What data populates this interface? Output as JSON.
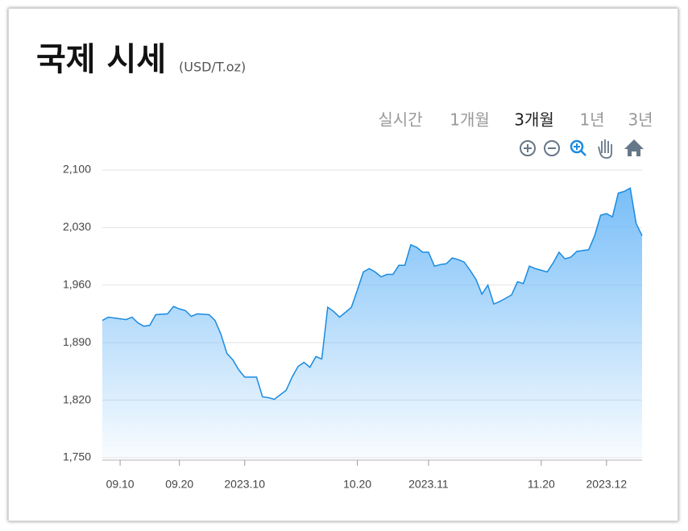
{
  "header": {
    "title": "국제 시세",
    "unit": "(USD/T.oz)"
  },
  "tabs": [
    "실시간",
    "1개월",
    "3개월",
    "1년",
    "3년"
  ],
  "active_tab_index": 2,
  "chart_data": {
    "type": "area",
    "color": "#1a8be0",
    "grid": true,
    "x": [
      "2023-09-07",
      "2023-09-08",
      "2023-09-11",
      "2023-09-12",
      "2023-09-13",
      "2023-09-14",
      "2023-09-15",
      "2023-09-16",
      "2023-09-18",
      "2023-09-19",
      "2023-09-20",
      "2023-09-21",
      "2023-09-22",
      "2023-09-23",
      "2023-09-25",
      "2023-09-26",
      "2023-09-27",
      "2023-09-28",
      "2023-09-29",
      "2023-09-30",
      "2023-10-01",
      "2023-10-03",
      "2023-10-04",
      "2023-10-05",
      "2023-10-06",
      "2023-10-08",
      "2023-10-09",
      "2023-10-10",
      "2023-10-11",
      "2023-10-12",
      "2023-10-13",
      "2023-10-14",
      "2023-10-15",
      "2023-10-16",
      "2023-10-17",
      "2023-10-18",
      "2023-10-19",
      "2023-10-20",
      "2023-10-21",
      "2023-10-22",
      "2023-10-23",
      "2023-10-24",
      "2023-10-25",
      "2023-10-26",
      "2023-10-27",
      "2023-10-28",
      "2023-10-29",
      "2023-10-30",
      "2023-10-31",
      "2023-11-01",
      "2023-11-02",
      "2023-11-03",
      "2023-11-04",
      "2023-11-05",
      "2023-11-06",
      "2023-11-07",
      "2023-11-08",
      "2023-11-09",
      "2023-11-10",
      "2023-11-11",
      "2023-11-12",
      "2023-11-13",
      "2023-11-14",
      "2023-11-15",
      "2023-11-16",
      "2023-11-17",
      "2023-11-18",
      "2023-11-19",
      "2023-11-20",
      "2023-11-21",
      "2023-11-22",
      "2023-11-23",
      "2023-11-24",
      "2023-11-25",
      "2023-11-26",
      "2023-11-28",
      "2023-11-29",
      "2023-11-30",
      "2023-12-01",
      "2023-12-02",
      "2023-12-03",
      "2023-12-04",
      "2023-12-05",
      "2023-12-06",
      "2023-12-07"
    ],
    "values": [
      1917,
      1921,
      1918,
      1921,
      1914,
      1910,
      1911,
      1924,
      1925,
      1934,
      1931,
      1929,
      1922,
      1925,
      1924,
      1917,
      1900,
      1877,
      1869,
      1857,
      1848,
      1848,
      1824,
      1823,
      1821,
      1832,
      1848,
      1861,
      1866,
      1860,
      1873,
      1870,
      1933,
      1928,
      1921,
      1927,
      1933,
      1954,
      1976,
      1980,
      1976,
      1970,
      1973,
      1973,
      1984,
      1984,
      2009,
      2006,
      2000,
      2000,
      1983,
      1985,
      1986,
      1993,
      1991,
      1988,
      1978,
      1967,
      1949,
      1960,
      1937,
      1940,
      1944,
      1948,
      1964,
      1962,
      1983,
      1980,
      1978,
      1976,
      1987,
      2000,
      1992,
      1994,
      2001,
      2003,
      2020,
      2045,
      2047,
      2043,
      2072,
      2074,
      2078,
      2035,
      2020
    ],
    "xlim": [
      "2023-09-07",
      "2023-12-07"
    ],
    "xticks": [
      {
        "value": "2023-09-10",
        "label": "09.10"
      },
      {
        "value": "2023-09-20",
        "label": "09.20"
      },
      {
        "value": "2023-10-01",
        "label": "2023.10"
      },
      {
        "value": "2023-10-20",
        "label": "10.20"
      },
      {
        "value": "2023-11-01",
        "label": "2023.11"
      },
      {
        "value": "2023-11-20",
        "label": "11.20"
      },
      {
        "value": "2023-12-01",
        "label": "2023.12"
      }
    ],
    "ylim": [
      1750,
      2100
    ],
    "yticks": [
      {
        "value": 1750,
        "label": "1,750"
      },
      {
        "value": 1820,
        "label": "1,820"
      },
      {
        "value": 1890,
        "label": "1,890"
      },
      {
        "value": 1960,
        "label": "1,960"
      },
      {
        "value": 2030,
        "label": "2,030"
      },
      {
        "value": 2100,
        "label": "2,100"
      }
    ]
  }
}
